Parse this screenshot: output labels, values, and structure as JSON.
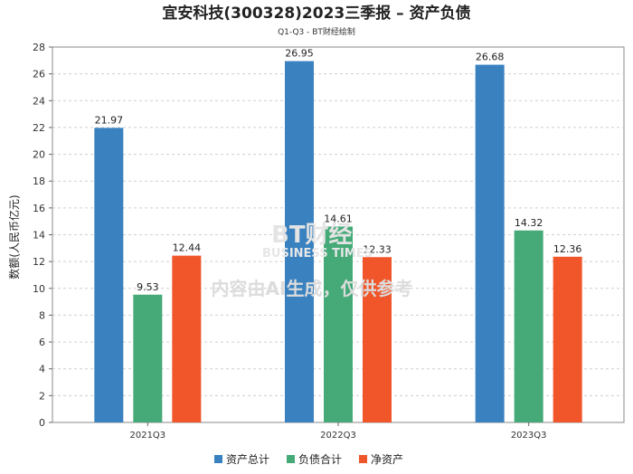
{
  "chart_data": {
    "type": "bar",
    "title": "宜安科技(300328)2023三季报 – 资产负债",
    "subtitle": "Q1-Q3 - BT财经绘制",
    "ylabel": "数额(人民币亿元)",
    "xlabel": "",
    "ylim": [
      0,
      28
    ],
    "yticks": [
      0,
      2,
      4,
      6,
      8,
      10,
      12,
      14,
      16,
      18,
      20,
      22,
      24,
      26,
      28
    ],
    "categories": [
      "2021Q3",
      "2022Q3",
      "2023Q3"
    ],
    "series": [
      {
        "name": "资产总计",
        "color": "#3a81c0",
        "values": [
          21.97,
          26.95,
          26.68
        ]
      },
      {
        "name": "负债合计",
        "color": "#45aa78",
        "values": [
          9.53,
          14.61,
          14.32
        ]
      },
      {
        "name": "净资产",
        "color": "#f0562a",
        "values": [
          12.44,
          12.33,
          12.36
        ]
      }
    ],
    "grid": true,
    "legend_position": "bottom-center"
  },
  "watermark": {
    "brand": "BT财经",
    "brand_sub": "BUSINESS TIMES",
    "notice": "内容由AI生成，仅供参考"
  }
}
